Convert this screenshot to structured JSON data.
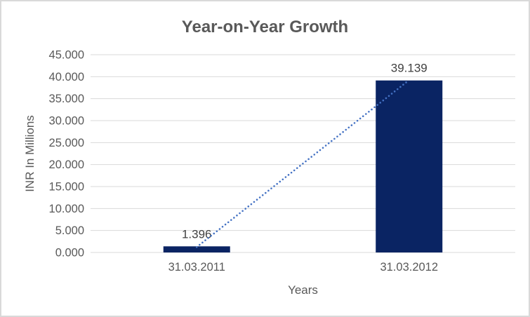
{
  "frame": {
    "background": "#ffffff",
    "border_color": "#d9d9d9"
  },
  "chart_data": {
    "type": "bar",
    "title": "Year-on-Year Growth",
    "categories": [
      "31.03.2011",
      "31.03.2012"
    ],
    "values": [
      1.396,
      39.139
    ],
    "data_labels": [
      "1.396",
      "39.139"
    ],
    "xlabel": "Years",
    "ylabel": "INR In Millions",
    "ylim": [
      0,
      45
    ],
    "ytick_step": 5,
    "ytick_labels": [
      "0.000",
      "5.000",
      "10.000",
      "15.000",
      "20.000",
      "25.000",
      "30.000",
      "35.000",
      "40.000",
      "45.000"
    ],
    "grid": true,
    "legend": "none",
    "bar_color": "#0a2463",
    "gridline_color": "#d9d9d9",
    "axis_text_color": "#595959",
    "data_label_color": "#404040",
    "trendline": {
      "style": "dotted",
      "color": "#4472c4",
      "from_category": 0,
      "to_category": 1
    }
  }
}
